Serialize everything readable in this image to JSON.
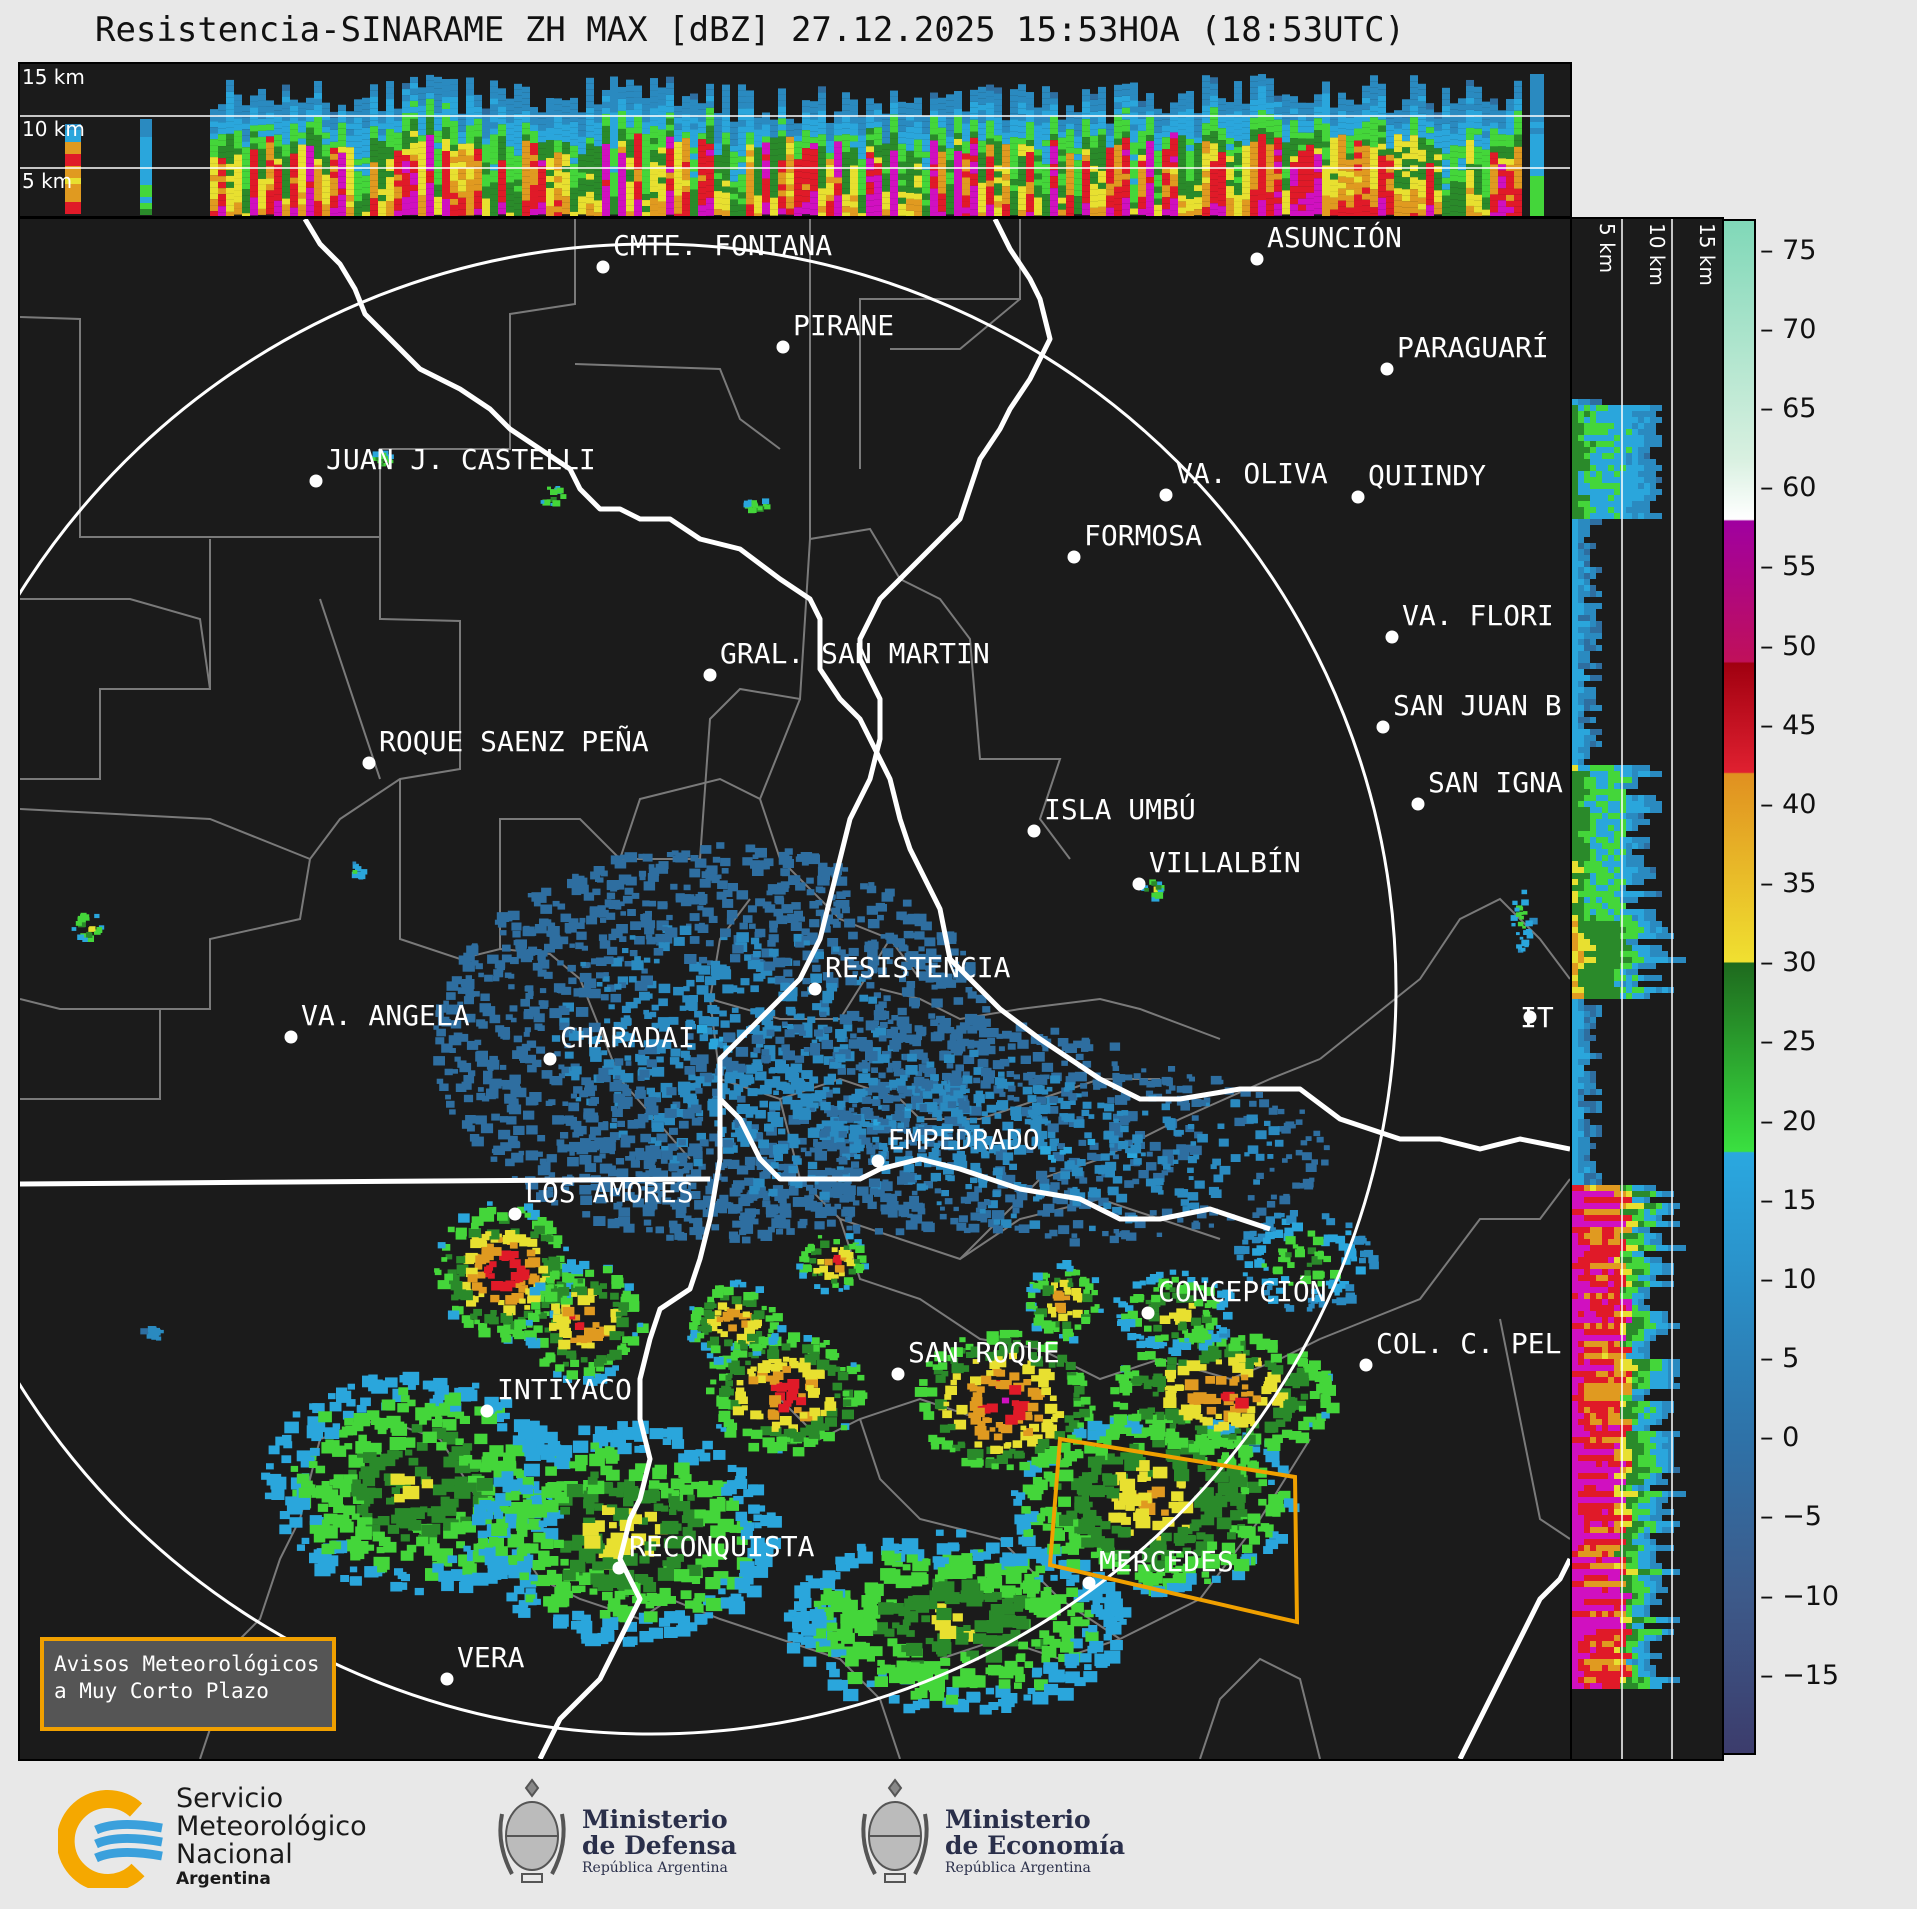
{
  "title": "Resistencia-SINARAME ZH MAX [dBZ] 27.12.2025 15:53HOA (18:53UTC)",
  "top_profile": {
    "altitude_labels": [
      "15 km",
      "10 km",
      "5 km"
    ]
  },
  "side_profile": {
    "altitude_labels": [
      "5 km",
      "10 km",
      "15 km"
    ]
  },
  "colorbar": {
    "ticks": [
      "75",
      "70",
      "65",
      "60",
      "55",
      "50",
      "45",
      "40",
      "35",
      "30",
      "25",
      "20",
      "15",
      "10",
      "5",
      "0",
      "−5",
      "−10",
      "−15"
    ],
    "stops": [
      {
        "dbz": -20,
        "color": "#3c3c6c"
      },
      {
        "dbz": -10,
        "color": "#3d5a8a"
      },
      {
        "dbz": 0,
        "color": "#2e72a8"
      },
      {
        "dbz": 10,
        "color": "#2a90c8"
      },
      {
        "dbz": 18,
        "color": "#2aa8e0"
      },
      {
        "dbz": 18.1,
        "color": "#3ae040"
      },
      {
        "dbz": 30,
        "color": "#1e6a1e"
      },
      {
        "dbz": 30.1,
        "color": "#f0e030"
      },
      {
        "dbz": 42,
        "color": "#e09020"
      },
      {
        "dbz": 42.1,
        "color": "#e02030"
      },
      {
        "dbz": 49,
        "color": "#a00010"
      },
      {
        "dbz": 49.1,
        "color": "#c0105a"
      },
      {
        "dbz": 58,
        "color": "#a000a0"
      },
      {
        "dbz": 58.1,
        "color": "#ffffff"
      },
      {
        "dbz": 62,
        "color": "#d8f0e0"
      },
      {
        "dbz": 77,
        "color": "#80d8b8"
      }
    ]
  },
  "cities": [
    {
      "name": "CMTE. FONTANA"
    },
    {
      "name": "ASUNCIÓN"
    },
    {
      "name": "PIRANE"
    },
    {
      "name": "PARAGUARÍ"
    },
    {
      "name": "JUAN J. CASTELLI"
    },
    {
      "name": "VA. OLIVA"
    },
    {
      "name": "QUIINDY"
    },
    {
      "name": "FORMOSA"
    },
    {
      "name": "VA. FLORI"
    },
    {
      "name": "GRAL. SAN MARTIN"
    },
    {
      "name": "SAN JUAN B"
    },
    {
      "name": "ROQUE SAENZ PEÑA"
    },
    {
      "name": "SAN IGNA"
    },
    {
      "name": "ISLA UMBÚ"
    },
    {
      "name": "VILLALBÍN"
    },
    {
      "name": "RESISTENCIA"
    },
    {
      "name": "VA. ANGELA"
    },
    {
      "name": "CHARADAI"
    },
    {
      "name": "IT"
    },
    {
      "name": "EMPEDRADO"
    },
    {
      "name": "LOS AMORES"
    },
    {
      "name": "CONCEPCIÓN"
    },
    {
      "name": "SAN ROQUE"
    },
    {
      "name": "COL. C. PEL"
    },
    {
      "name": "INTIYACO"
    },
    {
      "name": "RECONQUISTA"
    },
    {
      "name": "MERCEDES"
    },
    {
      "name": "VERA"
    }
  ],
  "alert_box": {
    "line1": "Avisos Meteorológicos",
    "line2": "a Muy Corto Plazo"
  },
  "logos": {
    "smn": {
      "line1": "Servicio",
      "line2": "Meteorológico",
      "line3": "Nacional",
      "line4": "Argentina"
    },
    "defensa": {
      "line1": "Ministerio",
      "line2": "de Defensa",
      "line3": "República Argentina"
    },
    "economia": {
      "line1": "Ministerio",
      "line2": "de Economía",
      "line3": "República Argentina"
    }
  }
}
